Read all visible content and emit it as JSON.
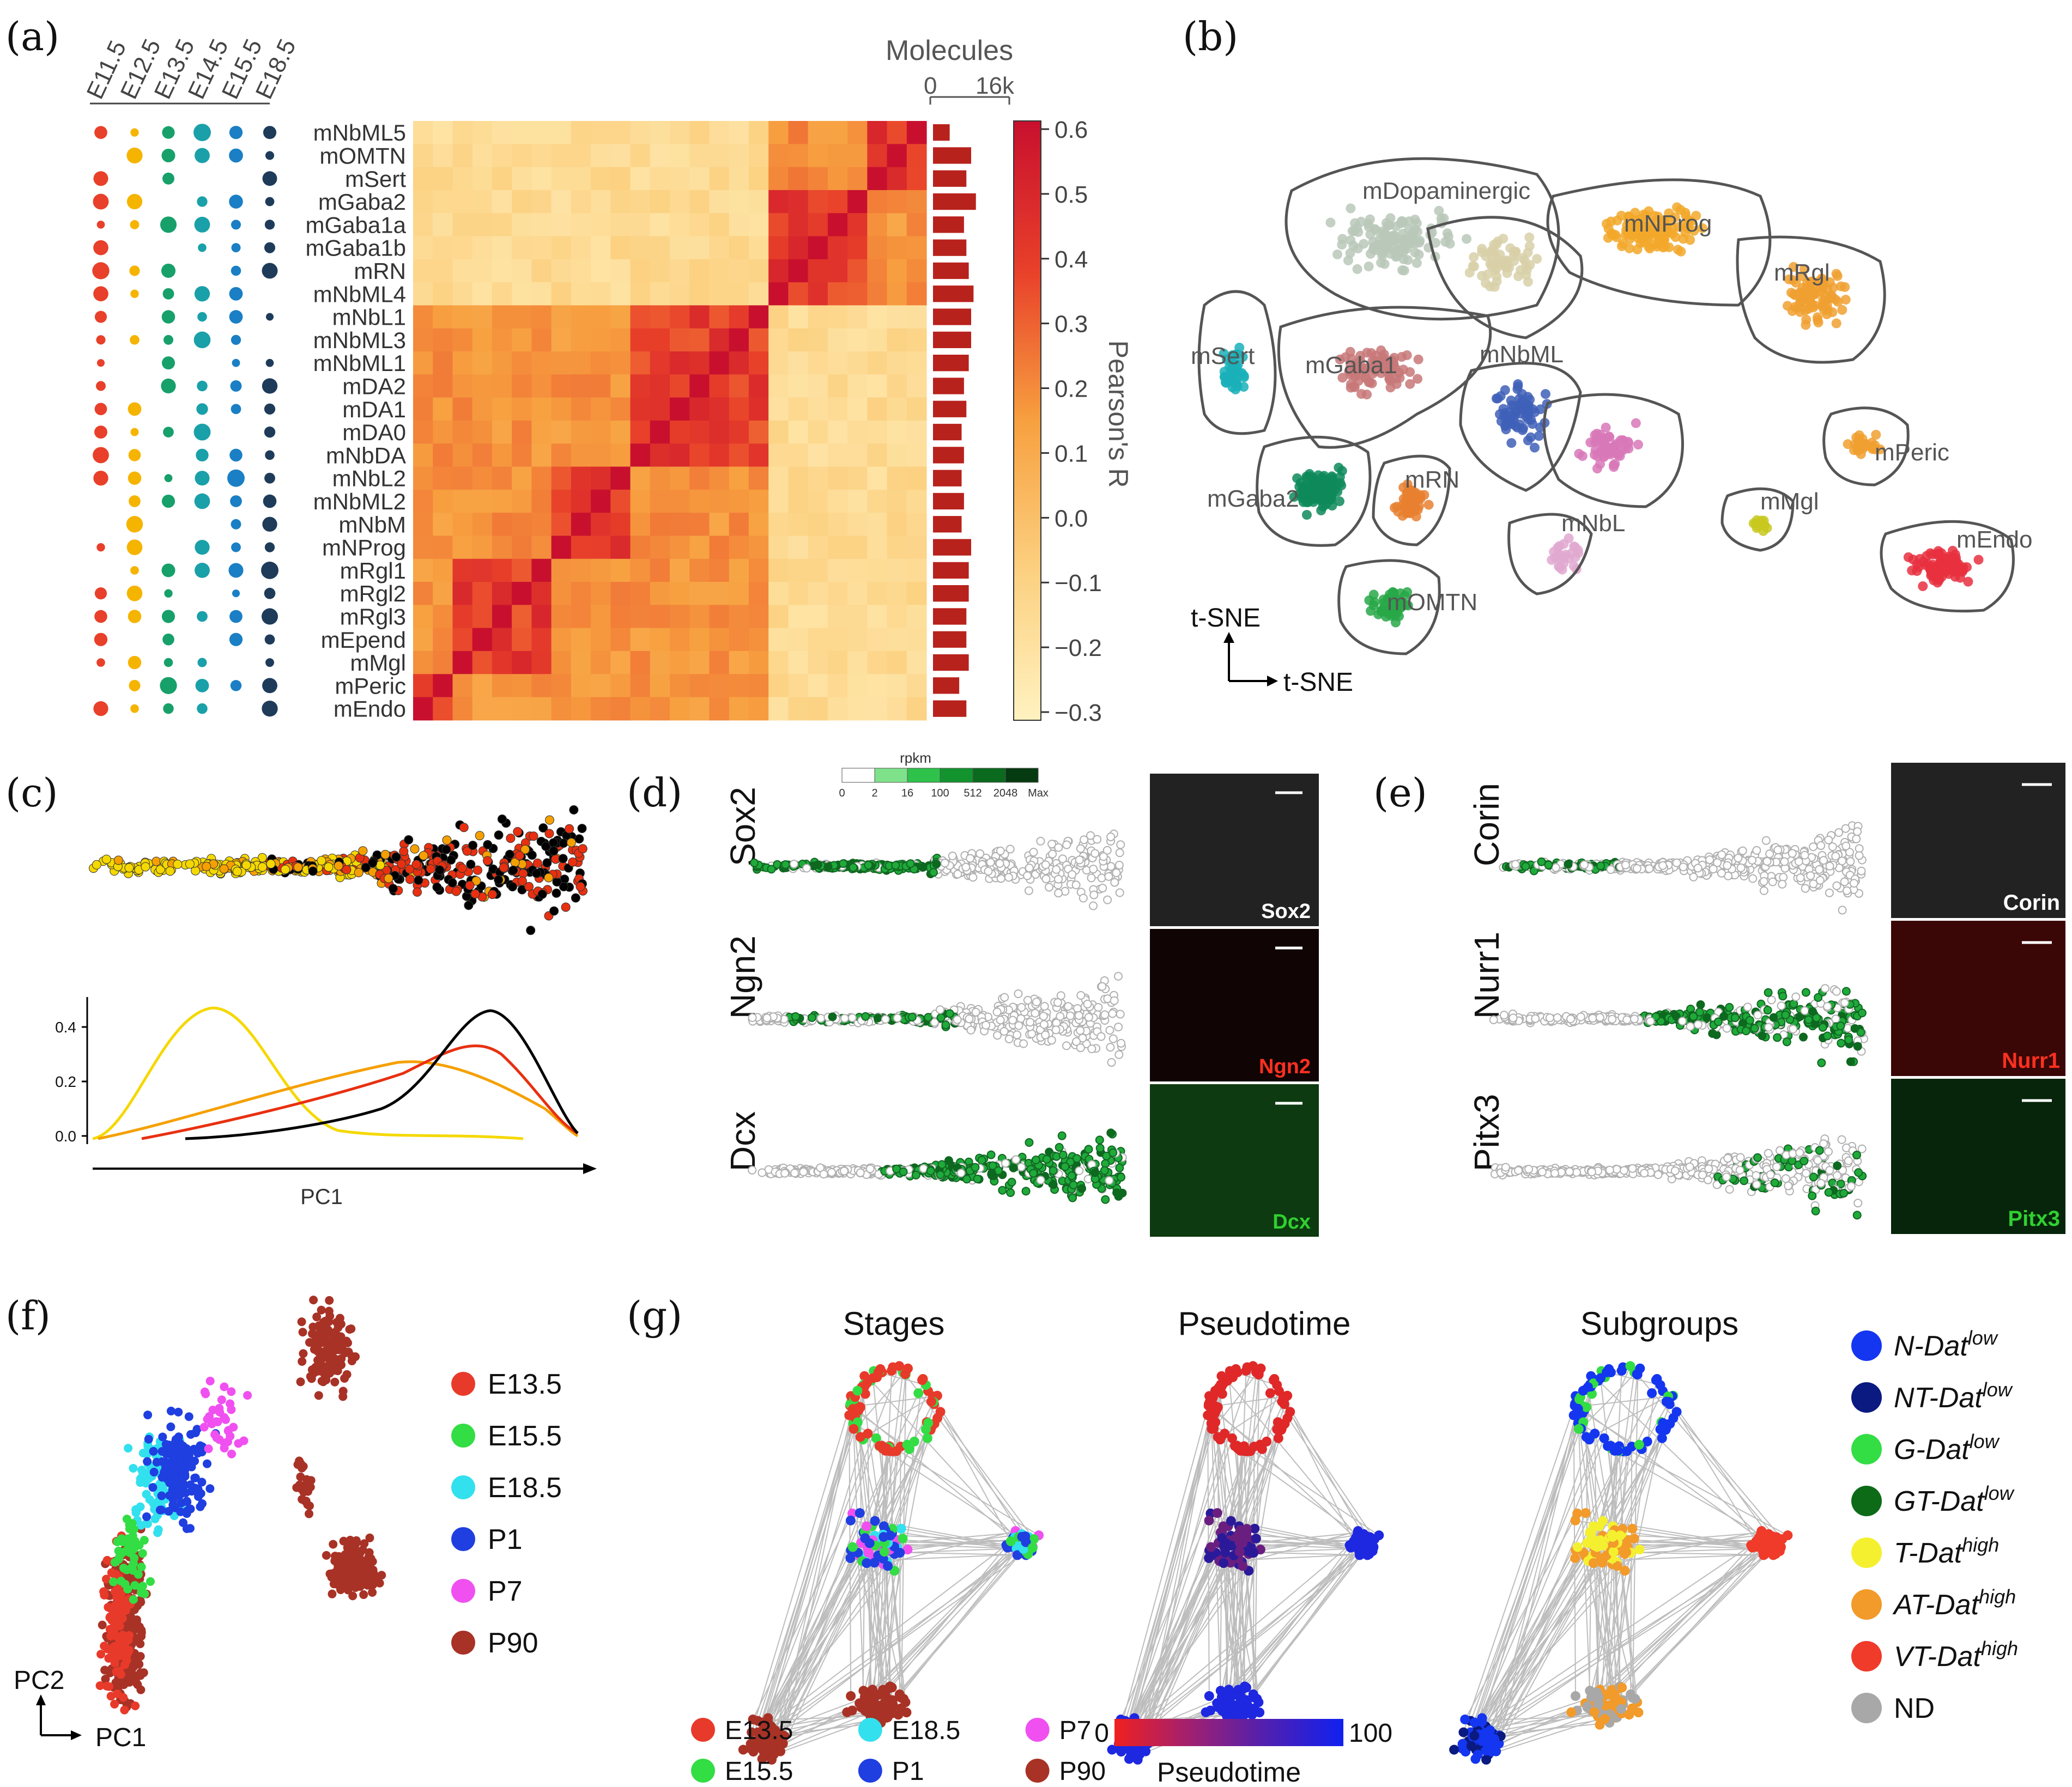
{
  "panels": {
    "a": {
      "label": "(a)",
      "stages": [
        "E11.5",
        "E12.5",
        "E13.5",
        "E14.5",
        "E15.5",
        "E18.5"
      ],
      "stage_colors": [
        "#e8402a",
        "#f5b400",
        "#17a06a",
        "#1aa0a8",
        "#1a7fc4",
        "#1e3b5a"
      ],
      "row_labels": [
        "mNbML5",
        "mOMTN",
        "mSert",
        "mGaba2",
        "mGaba1a",
        "mGaba1b",
        "mRN",
        "mNbML4",
        "mNbL1",
        "mNbML3",
        "mNbML1",
        "mDA2",
        "mDA1",
        "mDA0",
        "mNbDA",
        "mNbL2",
        "mNbML2",
        "mNbM",
        "mNProg",
        "mRgl1",
        "mRgl2",
        "mRgl3",
        "mEpend",
        "mMgl",
        "mPeric",
        "mEndo"
      ],
      "molecules_title": "Molecules",
      "molecules_ticks": [
        "0",
        "16k"
      ],
      "molecules_values_k": [
        3.5,
        8,
        7,
        9,
        6.5,
        7,
        7.5,
        8.5,
        8,
        8,
        7.5,
        6.5,
        7,
        6,
        6.5,
        6,
        6.5,
        6,
        8,
        7.5,
        7.5,
        7,
        7,
        7.5,
        5.5,
        7
      ],
      "colorbar_title": "Pearson's R",
      "colorbar_ticks": [
        "0.6",
        "0.5",
        "0.4",
        "0.3",
        "0.2",
        "0.1",
        "0.0",
        "−0.1",
        "−0.2",
        "−0.3"
      ]
    },
    "b": {
      "label": "(b)",
      "clusters": [
        "mDopaminergic",
        "mNProg",
        "mRgl",
        "mSert",
        "mGaba1",
        "mNbML",
        "mGaba2",
        "mRN",
        "mNbL",
        "mOMTN",
        "mPeric",
        "mMgl",
        "mEndo"
      ],
      "axis_y": "t-SNE",
      "axis_x": "t-SNE"
    },
    "c": {
      "label": "(c)",
      "xlabel": "PC1",
      "yticks": [
        "0.4",
        "0.2",
        "0.0"
      ],
      "curve_colors": [
        "#f5d800",
        "#f5a000",
        "#e83010",
        "#000000"
      ]
    },
    "d": {
      "label": "(d)",
      "rpkm_title": "rpkm",
      "rpkm_ticks": [
        "0",
        "2",
        "16",
        "100",
        "512",
        "2048",
        "Max"
      ],
      "genes": [
        "Sox2",
        "Ngn2",
        "Dcx"
      ],
      "image_labels": [
        "Sox2",
        "Ngn2",
        "Dcx"
      ]
    },
    "e": {
      "label": "(e)",
      "genes": [
        "Corin",
        "Nurr1",
        "Pitx3"
      ],
      "image_labels": [
        "Corin",
        "Nurr1",
        "Pitx3"
      ]
    },
    "f": {
      "label": "(f)",
      "legend": [
        {
          "name": "E13.5",
          "color": "#e83a2a"
        },
        {
          "name": "E15.5",
          "color": "#33dd44"
        },
        {
          "name": "E18.5",
          "color": "#33e0ee"
        },
        {
          "name": "P1",
          "color": "#1f3fe0"
        },
        {
          "name": "P7",
          "color": "#f050f0"
        },
        {
          "name": "P90",
          "color": "#a83226"
        }
      ],
      "axis_y": "PC2",
      "axis_x": "PC1"
    },
    "g": {
      "label": "(g)",
      "titles": [
        "Stages",
        "Pseudotime",
        "Subgroups"
      ],
      "stage_legend": [
        {
          "name": "E13.5",
          "color": "#e83a2a"
        },
        {
          "name": "E18.5",
          "color": "#33e0ee"
        },
        {
          "name": "P7",
          "color": "#f050f0"
        },
        {
          "name": "E15.5",
          "color": "#33dd44"
        },
        {
          "name": "P1",
          "color": "#1f3fe0"
        },
        {
          "name": "P90",
          "color": "#a83226"
        }
      ],
      "pseudotime_min": "0",
      "pseudotime_max": "100",
      "pseudotime_title": "Pseudotime",
      "subgroups": [
        {
          "base": "N-Dat",
          "sup": "low",
          "color": "#1436f0"
        },
        {
          "base": "NT-Dat",
          "sup": "low",
          "color": "#0a1a80"
        },
        {
          "base": "G-Dat",
          "sup": "low",
          "color": "#33dd44"
        },
        {
          "base": "GT-Dat",
          "sup": "low",
          "color": "#0d6b18"
        },
        {
          "base": "T-Dat",
          "sup": "high",
          "color": "#f4f030"
        },
        {
          "base": "AT-Dat",
          "sup": "high",
          "color": "#f29a2a"
        },
        {
          "base": "VT-Dat",
          "sup": "high",
          "color": "#f03a2a"
        },
        {
          "base": "ND",
          "sup": "",
          "color": "#a8a8a8"
        }
      ]
    }
  }
}
